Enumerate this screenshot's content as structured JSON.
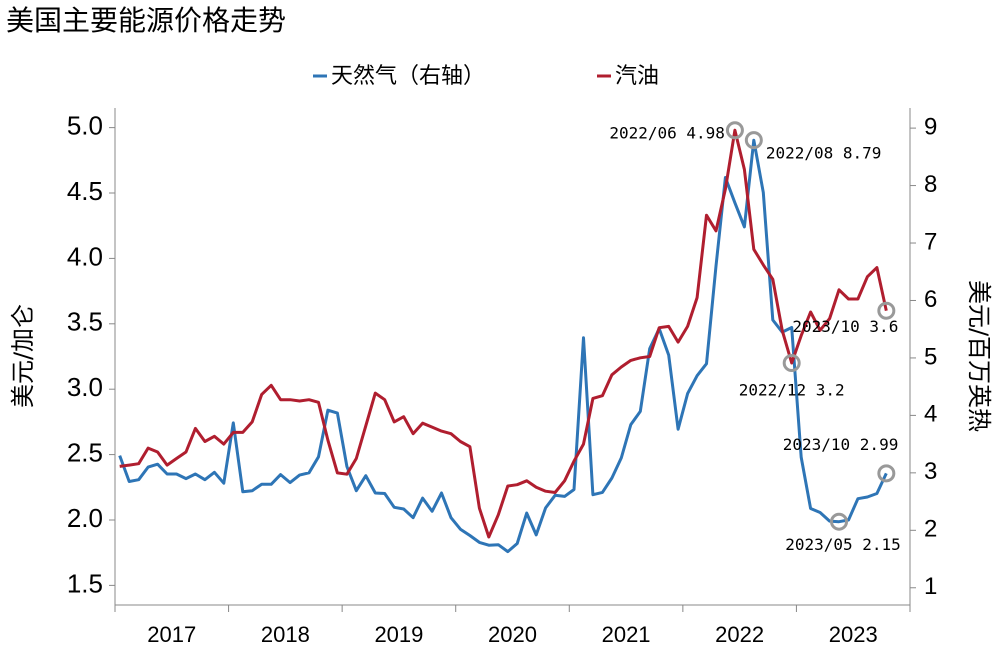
{
  "chart_data": {
    "type": "line",
    "title": "美国主要能源价格走势",
    "ylabel": "美元/加仑",
    "y2label": "美元/百万英热",
    "categories": [
      "2017/01",
      "2017/02",
      "2017/03",
      "2017/04",
      "2017/05",
      "2017/06",
      "2017/07",
      "2017/08",
      "2017/09",
      "2017/10",
      "2017/11",
      "2017/12",
      "2018/01",
      "2018/02",
      "2018/03",
      "2018/04",
      "2018/05",
      "2018/06",
      "2018/07",
      "2018/08",
      "2018/09",
      "2018/10",
      "2018/11",
      "2018/12",
      "2019/01",
      "2019/02",
      "2019/03",
      "2019/04",
      "2019/05",
      "2019/06",
      "2019/07",
      "2019/08",
      "2019/09",
      "2019/10",
      "2019/11",
      "2019/12",
      "2020/01",
      "2020/02",
      "2020/03",
      "2020/04",
      "2020/05",
      "2020/06",
      "2020/07",
      "2020/08",
      "2020/09",
      "2020/10",
      "2020/11",
      "2020/12",
      "2021/01",
      "2021/02",
      "2021/03",
      "2021/04",
      "2021/05",
      "2021/06",
      "2021/07",
      "2021/08",
      "2021/09",
      "2021/10",
      "2021/11",
      "2021/12",
      "2022/01",
      "2022/02",
      "2022/03",
      "2022/04",
      "2022/05",
      "2022/06",
      "2022/07",
      "2022/08",
      "2022/09",
      "2022/10",
      "2022/11",
      "2022/12",
      "2023/01",
      "2023/02",
      "2023/03",
      "2023/04",
      "2023/05",
      "2023/06",
      "2023/07",
      "2023/08",
      "2023/09",
      "2023/10"
    ],
    "year_labels": [
      "2017",
      "2018",
      "2019",
      "2020",
      "2021",
      "2022",
      "2023"
    ],
    "series": [
      {
        "name": "天然气（右轴）",
        "color": "#2e75b6",
        "axis": "y2",
        "values": [
          3.3,
          2.85,
          2.88,
          3.1,
          3.15,
          2.98,
          2.98,
          2.9,
          2.98,
          2.88,
          3.01,
          2.82,
          3.87,
          2.67,
          2.69,
          2.8,
          2.8,
          2.97,
          2.83,
          2.96,
          3.0,
          3.28,
          4.09,
          4.04,
          3.11,
          2.69,
          2.95,
          2.65,
          2.64,
          2.4,
          2.37,
          2.22,
          2.56,
          2.33,
          2.65,
          2.22,
          2.02,
          1.91,
          1.79,
          1.74,
          1.75,
          1.63,
          1.77,
          2.3,
          1.92,
          2.39,
          2.61,
          2.59,
          2.71,
          5.35,
          2.62,
          2.66,
          2.91,
          3.26,
          3.84,
          4.07,
          5.16,
          5.51,
          5.05,
          3.76,
          4.38,
          4.69,
          4.9,
          6.6,
          8.14,
          7.7,
          7.28,
          8.79,
          7.88,
          5.66,
          5.45,
          5.53,
          3.27,
          2.38,
          2.31,
          2.16,
          2.15,
          2.18,
          2.55,
          2.58,
          2.64,
          2.99
        ]
      },
      {
        "name": "汽油",
        "color": "#b01e2f",
        "values": [
          2.41,
          2.42,
          2.43,
          2.55,
          2.52,
          2.42,
          2.47,
          2.52,
          2.7,
          2.6,
          2.64,
          2.58,
          2.67,
          2.67,
          2.75,
          2.96,
          3.03,
          2.92,
          2.92,
          2.91,
          2.92,
          2.9,
          2.61,
          2.36,
          2.35,
          2.47,
          2.72,
          2.97,
          2.92,
          2.75,
          2.79,
          2.66,
          2.74,
          2.71,
          2.68,
          2.66,
          2.6,
          2.56,
          2.09,
          1.87,
          2.04,
          2.26,
          2.27,
          2.3,
          2.25,
          2.22,
          2.21,
          2.3,
          2.45,
          2.58,
          2.93,
          2.95,
          3.11,
          3.17,
          3.22,
          3.24,
          3.25,
          3.47,
          3.48,
          3.36,
          3.48,
          3.7,
          4.33,
          4.21,
          4.53,
          4.98,
          4.68,
          4.07,
          3.95,
          3.84,
          3.45,
          3.2,
          3.41,
          3.59,
          3.45,
          3.54,
          3.76,
          3.69,
          3.69,
          3.86,
          3.93,
          3.6
        ]
      }
    ],
    "ylim": [
      1.35,
      5.15
    ],
    "yticks": [
      4.5,
      3.5,
      2.5,
      1.5,
      {
        "value": 5,
        "label": "5.0"
      },
      {
        "value": 4,
        "label": "4.0"
      },
      {
        "value": 3,
        "label": "3.0"
      },
      {
        "value": 2,
        "label": "2.0"
      }
    ],
    "y2lim": [
      0.7,
      9.35
    ],
    "y2ticks": [
      1,
      2,
      3,
      4,
      5,
      6,
      7,
      8,
      9
    ],
    "annotations": [
      {
        "x": "2022/06",
        "series": "汽油",
        "value": 4.98,
        "label": "2022/06 4.98"
      },
      {
        "x": "2022/08",
        "series": "天然气（右轴）",
        "value": 8.79,
        "label": "2022/08 8.79"
      },
      {
        "x": "2023/10",
        "series": "汽油",
        "value": 3.6,
        "label": "2023/10 3.6"
      },
      {
        "x": "2022/12",
        "series": "汽油",
        "value": 3.2,
        "label": "2022/12 3.2"
      },
      {
        "x": "2023/10",
        "series": "天然气（右轴）",
        "value": 2.99,
        "label": "2023/10 2.99"
      },
      {
        "x": "2023/05",
        "series": "天然气（右轴）",
        "value": 2.15,
        "label": "2023/05 2.15"
      }
    ]
  }
}
